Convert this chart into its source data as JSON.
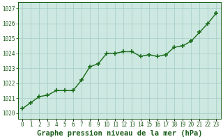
{
  "x": [
    0,
    1,
    2,
    3,
    4,
    5,
    6,
    7,
    8,
    9,
    10,
    11,
    12,
    13,
    14,
    15,
    16,
    17,
    18,
    19,
    20,
    21,
    22,
    23
  ],
  "y": [
    1020.3,
    1020.7,
    1021.1,
    1021.2,
    1021.5,
    1021.5,
    1021.5,
    1022.2,
    1023.1,
    1023.3,
    1024.0,
    1024.0,
    1024.1,
    1024.1,
    1023.8,
    1023.9,
    1023.8,
    1023.9,
    1024.4,
    1024.5,
    1024.8,
    1025.4,
    1026.0,
    1026.7
  ],
  "line_color": "#1a6b1a",
  "marker": "+",
  "marker_size": 5,
  "marker_linewidth": 1.2,
  "bg_color": "#cce8e0",
  "outer_bg": "#ffffff",
  "grid_color": "#aacfc7",
  "title": "Graphe pression niveau de la mer (hPa)",
  "title_color": "#1a5c1a",
  "title_fontsize": 7.5,
  "ylabel_ticks": [
    1020,
    1021,
    1022,
    1023,
    1024,
    1025,
    1026,
    1027
  ],
  "ylim": [
    1019.6,
    1027.4
  ],
  "xlim": [
    -0.5,
    23.5
  ],
  "xticks": [
    0,
    1,
    2,
    3,
    4,
    5,
    6,
    7,
    8,
    9,
    10,
    11,
    12,
    13,
    14,
    15,
    16,
    17,
    18,
    19,
    20,
    21,
    22,
    23
  ],
  "tick_color": "#1a5c1a",
  "tick_fontsize": 5.5,
  "ytick_fontsize": 5.5,
  "line_width": 1.0,
  "spine_color": "#1a5c1a"
}
